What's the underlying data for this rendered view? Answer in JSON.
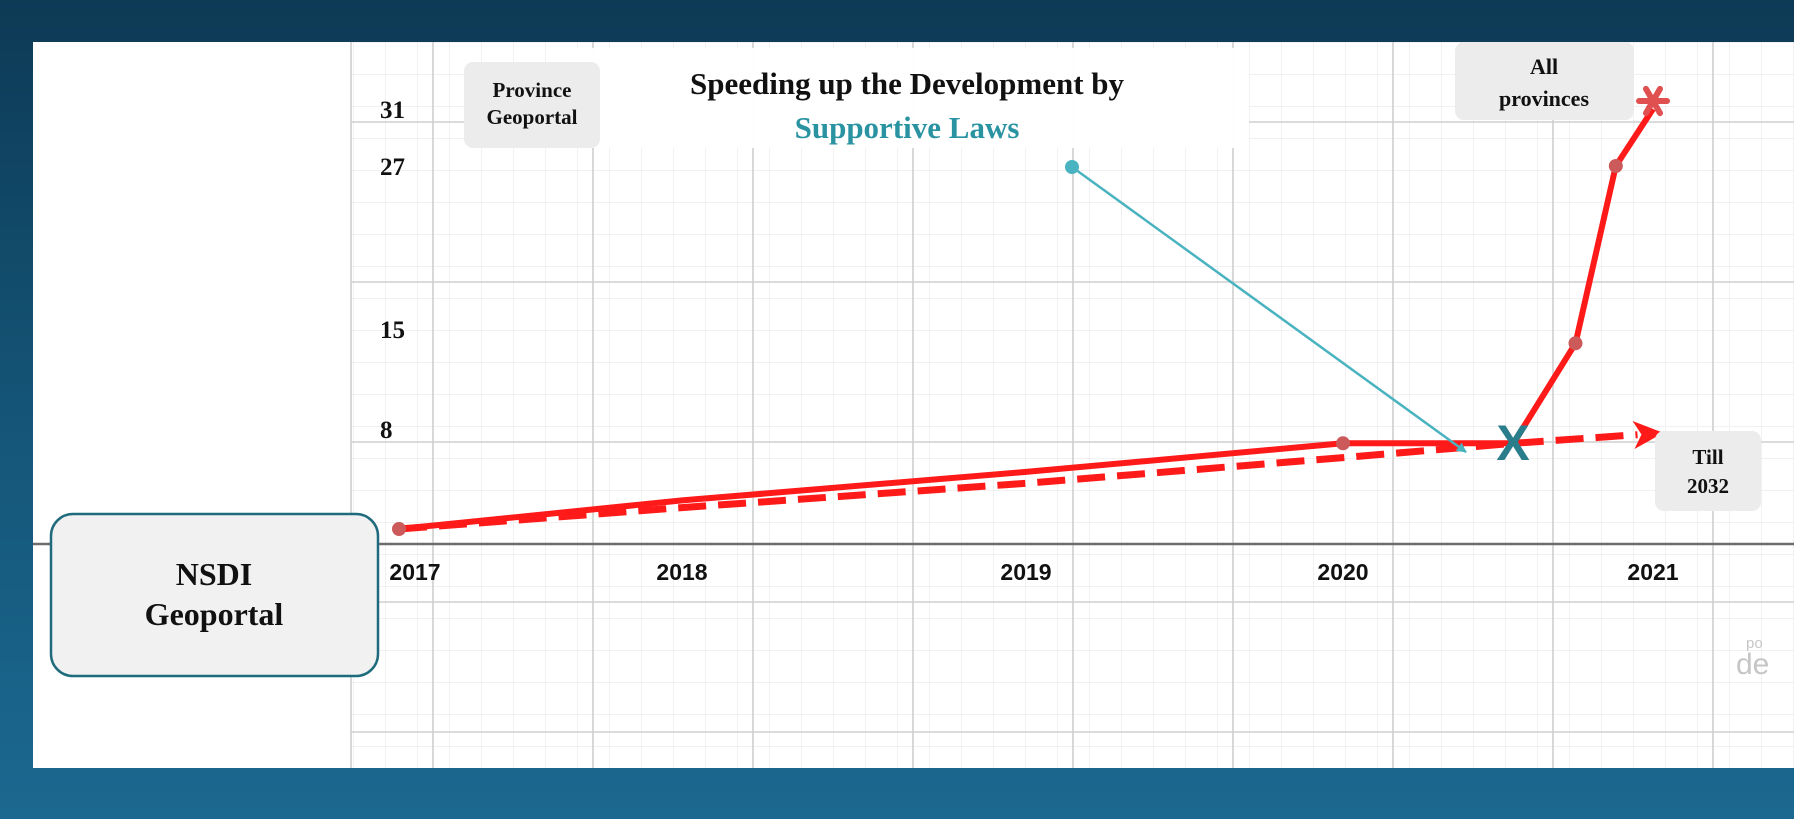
{
  "chart_data": {
    "type": "line",
    "title": "Speeding up the Development by",
    "subtitle": "Supportive Laws",
    "x_ticks": [
      "2017",
      "2018",
      "2019",
      "2020",
      "2021"
    ],
    "y_ticks": [
      8,
      15,
      27,
      31
    ],
    "series": [
      {
        "style": "solid",
        "x": [
          2017.0,
          2018.0,
          2019.0,
          2020.0,
          2020.55,
          2020.75,
          2020.88,
          2021.0
        ],
        "y": [
          1,
          3,
          5,
          7,
          7,
          14,
          27,
          31
        ]
      },
      {
        "style": "dashed",
        "x": [
          2017.0,
          2018.0,
          2019.0,
          2020.0,
          2020.55,
          2020.95
        ],
        "y": [
          1,
          2.5,
          4.2,
          6,
          7,
          7.6
        ]
      }
    ],
    "annotations": {
      "start_box": [
        "NSDI",
        "Geoportal"
      ],
      "province_box": [
        "Province",
        "Geoportal"
      ],
      "all_provinces_box": [
        "All",
        "provinces"
      ],
      "till_box": [
        "Till",
        "2032"
      ],
      "x_marker": "X",
      "watermark": [
        "po",
        "de"
      ]
    },
    "colors": {
      "line": "#ff1a1a",
      "point": "#cc5a5a",
      "arrow": "#4ab3c0",
      "accent": "#2a93a1",
      "marker": "#2a7d8a",
      "box_border": "#1e6b7d"
    },
    "grid": true
  }
}
